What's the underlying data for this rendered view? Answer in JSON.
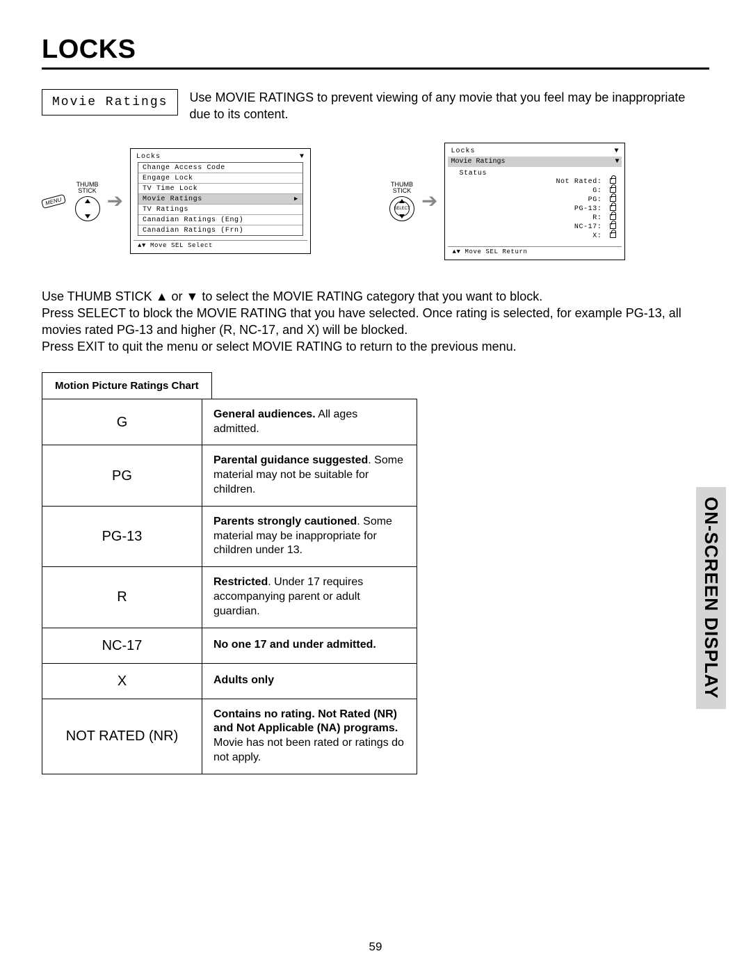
{
  "page": {
    "title": "LOCKS",
    "number": "59",
    "side_label": "ON-SCREEN DISPLAY"
  },
  "intro": {
    "box_label": "Movie Ratings",
    "text": "Use MOVIE RATINGS to prevent viewing of any movie that you feel may be inappropriate due to its content."
  },
  "thumb": {
    "label": "THUMB\nSTICK",
    "menu": "MENU",
    "select": "SELECT"
  },
  "osd1": {
    "title": "Locks",
    "items": [
      {
        "label": "Change Access Code",
        "hl": false
      },
      {
        "label": "Engage Lock",
        "hl": false
      },
      {
        "label": "TV Time Lock",
        "hl": false
      },
      {
        "label": "Movie Ratings",
        "hl": true,
        "arrow": true
      },
      {
        "label": "TV Ratings",
        "hl": false
      },
      {
        "label": "Canadian Ratings (Eng)",
        "hl": false
      },
      {
        "label": "Canadian Ratings (Frn)",
        "hl": false
      }
    ],
    "footer": "▲▼ Move  SEL  Select"
  },
  "osd2": {
    "title": "Locks",
    "subtitle": "Movie Ratings",
    "status_label": "Status",
    "rows": [
      {
        "label": "Not Rated:"
      },
      {
        "label": "G:"
      },
      {
        "label": "PG:"
      },
      {
        "label": "PG-13:"
      },
      {
        "label": "R:"
      },
      {
        "label": "NC-17:"
      },
      {
        "label": "X:"
      }
    ],
    "footer": "▲▼ Move  SEL  Return"
  },
  "instructions": {
    "p1": "Use THUMB STICK ▲ or ▼ to select the MOVIE RATING category that you want to block.",
    "p2": "Press SELECT to block the MOVIE RATING that you have selected. Once rating is selected, for example PG-13, all movies rated PG-13 and higher (R, NC-17, and X) will be blocked.",
    "p3": "Press EXIT to quit the menu or select MOVIE RATING to return to the previous menu."
  },
  "chart": {
    "heading": "Motion Picture Ratings Chart",
    "rows": [
      {
        "code": "G",
        "desc_bold": "General audiences.",
        "desc_rest": " All ages admitted."
      },
      {
        "code": "PG",
        "desc_bold": "Parental guidance suggested",
        "desc_rest": ". Some material may not be suitable for children."
      },
      {
        "code": "PG-13",
        "desc_bold": "Parents strongly cautioned",
        "desc_rest": ". Some material may be inappropriate for children under 13."
      },
      {
        "code": "R",
        "desc_bold": "Restricted",
        "desc_rest": ". Under 17 requires accompanying parent or adult guardian."
      },
      {
        "code": "NC-17",
        "desc_bold": "No one 17 and under admitted.",
        "desc_rest": ""
      },
      {
        "code": "X",
        "desc_bold": "Adults only",
        "desc_rest": ""
      },
      {
        "code": "NOT RATED (NR)",
        "desc_bold": "Contains no rating. Not Rated (NR) and Not Applicable (NA) programs.",
        "desc_rest": " Movie has not been rated or ratings do not apply."
      }
    ]
  }
}
